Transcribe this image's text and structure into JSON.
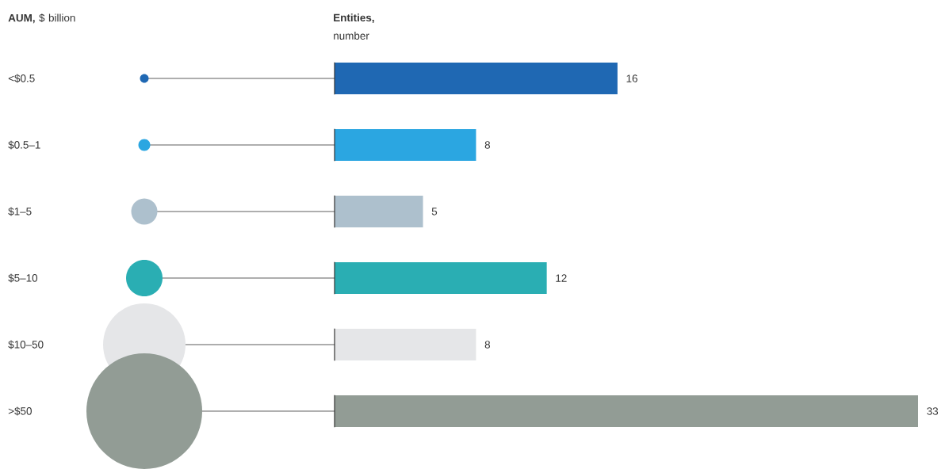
{
  "chart_data": {
    "type": "bar",
    "orientation": "horizontal",
    "ylabel": "**AUM,** $ billion",
    "xlabel": "**Entities,** number",
    "categories": [
      "<$0.5",
      "$0.5–1",
      "$1–5",
      "$5–10",
      "$10–50",
      ">$50"
    ],
    "data_labels": true,
    "values": [
      16,
      8,
      5,
      12,
      8,
      33
    ],
    "colors": [
      "#1f68b3",
      "#2ba6e1",
      "#adc0cd",
      "#2aaeb3",
      "#e5e6e8",
      "#929c95"
    ]
  }
}
